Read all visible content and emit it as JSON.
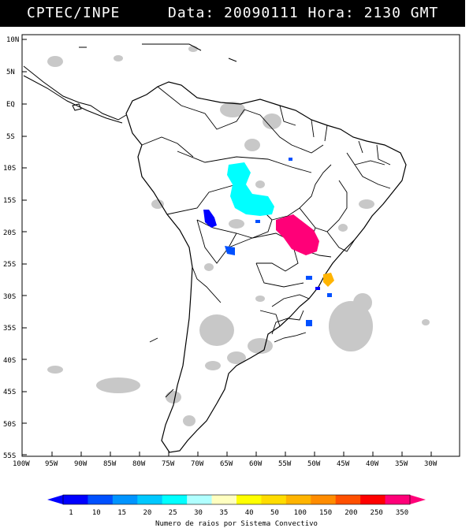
{
  "header": {
    "left_text": "CPTEC/INPE",
    "right_text": "Data: 20090111 Hora: 2130 GMT"
  },
  "map": {
    "lat_labels": [
      "10N",
      "5N",
      "EQ",
      "5S",
      "10S",
      "15S",
      "20S",
      "25S",
      "30S",
      "35S",
      "40S",
      "45S",
      "50S",
      "55S"
    ],
    "lon_labels": [
      "100W",
      "95W",
      "90W",
      "85W",
      "80W",
      "75W",
      "70W",
      "65W",
      "60W",
      "55W",
      "50W",
      "45W",
      "40W",
      "35W",
      "30W"
    ]
  },
  "colorbar": {
    "values": [
      "1",
      "10",
      "15",
      "20",
      "25",
      "30",
      "35",
      "40",
      "50",
      "100",
      "150",
      "200",
      "250",
      "350"
    ],
    "colors": [
      "#0000ff",
      "#0050ff",
      "#0094ff",
      "#00c8ff",
      "#00ffff",
      "#b0ffff",
      "#ffffc0",
      "#ffff00",
      "#ffdc00",
      "#ffb400",
      "#ff8c00",
      "#ff5000",
      "#ff0000",
      "#ff0078"
    ],
    "caption": "Numero de raios por Sistema Convectivo"
  }
}
